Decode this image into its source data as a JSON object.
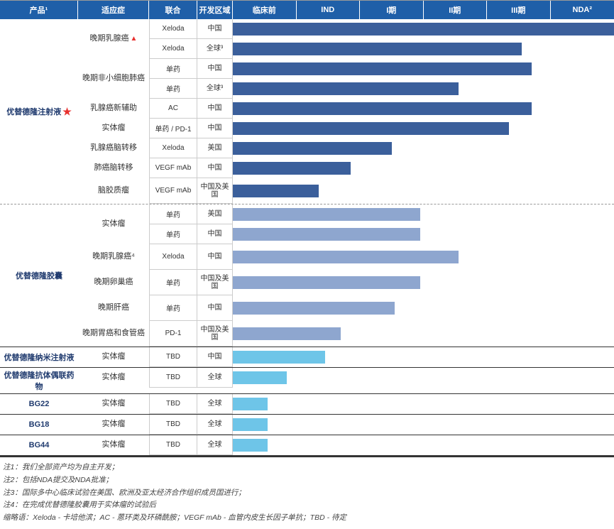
{
  "layout": {
    "stage_columns": 6,
    "col_widths": {
      "product": 110,
      "indication": 100,
      "combo": 68,
      "region": 50,
      "stage": 89.5
    }
  },
  "colors": {
    "header_bg": "#1f5fa8",
    "header_fg": "#ffffff",
    "bar_dark": "#3b5f9b",
    "bar_mid": "#8ea6cf",
    "bar_light": "#6ec5e8",
    "border": "#999999",
    "text": "#333333",
    "product_text": "#1f3a6e",
    "star": "#e8312f"
  },
  "headers": {
    "product": "产品¹",
    "indication": "适应症",
    "combo": "联合",
    "region": "开发区域",
    "stages": [
      "临床前",
      "IND",
      "I期",
      "II期",
      "III期",
      "NDA²"
    ]
  },
  "products": [
    {
      "name": "优替德隆注射液",
      "icon": "star",
      "border": "dashed",
      "bar_color": "#3b5f9b",
      "indications": [
        {
          "label": "晚期乳腺癌",
          "triangle": true,
          "rows": [
            {
              "combo": "Xeloda",
              "region": "中国",
              "progress": 6.0
            },
            {
              "combo": "Xeloda",
              "region": "全球³",
              "progress": 4.55
            }
          ]
        },
        {
          "label": "晚期非小细胞肺癌",
          "rows": [
            {
              "combo": "单药",
              "region": "中国",
              "progress": 4.7
            },
            {
              "combo": "单药",
              "region": "全球³",
              "progress": 3.55
            }
          ]
        },
        {
          "label": "乳腺癌新辅助",
          "rows": [
            {
              "combo": "AC",
              "region": "中国",
              "progress": 4.7
            }
          ]
        },
        {
          "label": "实体瘤",
          "rows": [
            {
              "combo": "单药 / PD-1",
              "region": "中国",
              "progress": 4.35
            }
          ]
        },
        {
          "label": "乳腺癌脑转移",
          "rows": [
            {
              "combo": "Xeloda",
              "region": "美国",
              "progress": 2.5
            }
          ]
        },
        {
          "label": "肺癌脑转移",
          "rows": [
            {
              "combo": "VEGF mAb",
              "region": "中国",
              "progress": 1.85
            }
          ]
        },
        {
          "label": "脑胶质瘤",
          "rows": [
            {
              "combo": "VEGF mAb",
              "region": "中国及美国",
              "progress": 1.35,
              "tall": true
            }
          ]
        }
      ]
    },
    {
      "name": "优替德隆胶囊",
      "border": "solid",
      "bar_color": "#8ea6cf",
      "indications": [
        {
          "label": "实体瘤",
          "rows": [
            {
              "combo": "单药",
              "region": "美国",
              "progress": 2.95
            },
            {
              "combo": "单药",
              "region": "中国",
              "progress": 2.95
            }
          ]
        },
        {
          "label": "晚期乳腺癌⁴",
          "rows": [
            {
              "combo": "Xeloda",
              "region": "中国",
              "progress": 3.55,
              "tall": true
            }
          ]
        },
        {
          "label": "晚期卵巢癌",
          "rows": [
            {
              "combo": "单药",
              "region": "中国及美国",
              "progress": 2.95,
              "tall": true
            }
          ]
        },
        {
          "label": "晚期肝癌",
          "rows": [
            {
              "combo": "单药",
              "region": "中国",
              "progress": 2.55,
              "tall": true
            }
          ]
        },
        {
          "label": "晚期胃癌和食管癌",
          "rows": [
            {
              "combo": "PD-1",
              "region": "中国及美国",
              "progress": 1.7,
              "tall": true
            }
          ]
        }
      ]
    },
    {
      "name": "优替德隆纳米注射液",
      "border": "solid",
      "bar_color": "#6ec5e8",
      "indications": [
        {
          "label": "实体瘤",
          "rows": [
            {
              "combo": "TBD",
              "region": "中国",
              "progress": 1.45
            }
          ]
        }
      ]
    },
    {
      "name": "优替德隆抗体偶联药物",
      "border": "solid",
      "bar_color": "#6ec5e8",
      "indications": [
        {
          "label": "实体瘤",
          "rows": [
            {
              "combo": "TBD",
              "region": "全球",
              "progress": 0.85
            }
          ]
        }
      ]
    },
    {
      "name": "BG22",
      "border": "solid",
      "bar_color": "#6ec5e8",
      "indications": [
        {
          "label": "实体瘤",
          "rows": [
            {
              "combo": "TBD",
              "region": "全球",
              "progress": 0.55
            }
          ]
        }
      ]
    },
    {
      "name": "BG18",
      "border": "solid",
      "bar_color": "#6ec5e8",
      "indications": [
        {
          "label": "实体瘤",
          "rows": [
            {
              "combo": "TBD",
              "region": "全球",
              "progress": 0.55
            }
          ]
        }
      ]
    },
    {
      "name": "BG44",
      "border": "solid",
      "bar_color": "#6ec5e8",
      "indications": [
        {
          "label": "实体瘤",
          "rows": [
            {
              "combo": "TBD",
              "region": "全球",
              "progress": 0.55
            }
          ]
        }
      ]
    }
  ],
  "notes": [
    "注1：我们全部资产均为自主开发；",
    "注2：包括NDA提交及NDA批准；",
    "注3：国际多中心临床试验在美国、欧洲及亚太经济合作组织成员国进行；",
    "注4：在完成优替德隆胶囊用于实体瘤的试验后",
    "缩略语：Xeloda - 卡培他滨；AC - 蒽环类及环磷酰胺；VEGF mAb - 血管内皮生长因子单抗；TBD - 待定"
  ]
}
